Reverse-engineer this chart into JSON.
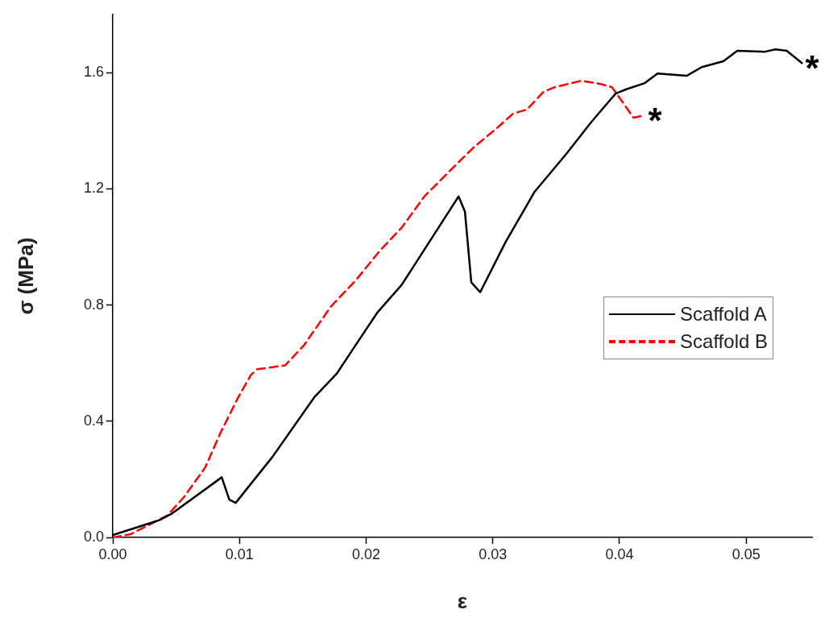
{
  "chart_data": {
    "type": "line",
    "xlabel": "ε",
    "ylabel": "σ (MPa)",
    "xlim": [
      0,
      0.0552
    ],
    "ylim": [
      0,
      1.8
    ],
    "xticks": [
      {
        "value": 0,
        "label": "0.00"
      },
      {
        "value": 0.01,
        "label": "0.01"
      },
      {
        "value": 0.02,
        "label": "0.02"
      },
      {
        "value": 0.03,
        "label": "0.03"
      },
      {
        "value": 0.04,
        "label": "0.04"
      },
      {
        "value": 0.05,
        "label": "0.05"
      }
    ],
    "yticks": [
      {
        "value": 0,
        "label": "0.0"
      },
      {
        "value": 0.4,
        "label": "0.4"
      },
      {
        "value": 0.8,
        "label": "0.8"
      },
      {
        "value": 1.2,
        "label": "1.2"
      },
      {
        "value": 1.6,
        "label": "1.6"
      }
    ],
    "grid": false,
    "legend": "right",
    "marker": "none",
    "series": [
      {
        "name": "Scaffold A",
        "color": "#000000",
        "line_style": "solid",
        "x": [
          0,
          0.0028,
          0.0037,
          0.0047,
          0.0086,
          0.0092,
          0.0097,
          0.0126,
          0.0159,
          0.0177,
          0.0192,
          0.0209,
          0.0228,
          0.0273,
          0.0278,
          0.0283,
          0.029,
          0.031,
          0.0333,
          0.0358,
          0.0378,
          0.0397,
          0.0405,
          0.042,
          0.043,
          0.0453,
          0.0465,
          0.0482,
          0.0493,
          0.0515,
          0.0523,
          0.0532,
          0.0544
        ],
        "values": [
          0.008,
          0.047,
          0.06,
          0.083,
          0.207,
          0.13,
          0.119,
          0.277,
          0.482,
          0.565,
          0.664,
          0.775,
          0.869,
          1.174,
          1.121,
          0.878,
          0.844,
          1.016,
          1.19,
          1.32,
          1.431,
          1.528,
          1.542,
          1.564,
          1.597,
          1.589,
          1.619,
          1.639,
          1.675,
          1.672,
          1.68,
          1.675,
          1.633
        ]
      },
      {
        "name": "Scaffold B",
        "color": "#ff0000",
        "line_style": "dashed",
        "x": [
          0,
          0.0014,
          0.0043,
          0.0056,
          0.0073,
          0.0085,
          0.0099,
          0.0109,
          0.0114,
          0.0136,
          0.0151,
          0.0172,
          0.0192,
          0.0211,
          0.0228,
          0.0246,
          0.0265,
          0.0285,
          0.0304,
          0.0316,
          0.0327,
          0.034,
          0.0349,
          0.037,
          0.0385,
          0.0394,
          0.0403,
          0.0411,
          0.042
        ],
        "values": [
          0,
          0.011,
          0.075,
          0.138,
          0.241,
          0.36,
          0.482,
          0.559,
          0.579,
          0.592,
          0.662,
          0.794,
          0.886,
          0.988,
          1.066,
          1.174,
          1.257,
          1.343,
          1.412,
          1.459,
          1.473,
          1.534,
          1.55,
          1.572,
          1.561,
          1.55,
          1.495,
          1.445,
          1.453
        ]
      }
    ],
    "annotations": [
      {
        "text": "*",
        "x": 0.042,
        "y": 1.453
      },
      {
        "text": "*",
        "x": 0.0544,
        "y": 1.633
      }
    ]
  }
}
